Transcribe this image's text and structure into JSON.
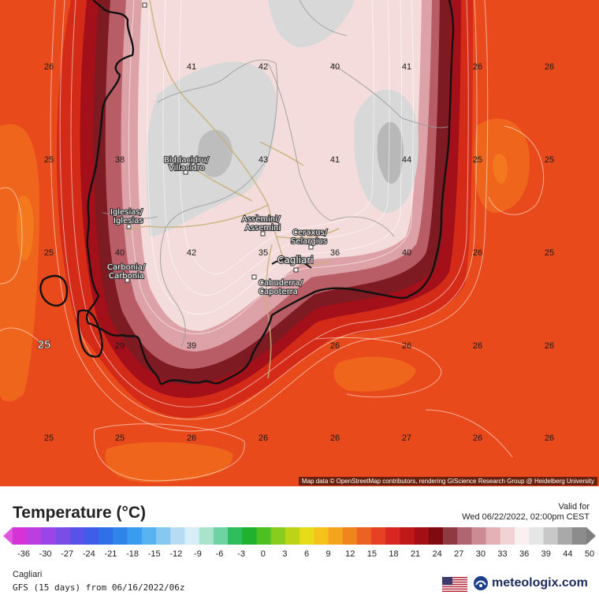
{
  "map": {
    "attribution": "Map data © OpenStreetMap contributors, rendering GIScience Research Group @ Heidelberg University",
    "temperature_labels": [
      {
        "v": "26"
      },
      {
        "v": "41"
      },
      {
        "v": "42"
      },
      {
        "v": "40"
      },
      {
        "v": "41"
      },
      {
        "v": "26"
      },
      {
        "v": "26"
      },
      {
        "v": "25"
      },
      {
        "v": "38"
      },
      {
        "v": "43"
      },
      {
        "v": "41"
      },
      {
        "v": "44"
      },
      {
        "v": "25"
      },
      {
        "v": "25"
      },
      {
        "v": "25"
      },
      {
        "v": "40"
      },
      {
        "v": "42"
      },
      {
        "v": "35"
      },
      {
        "v": "36"
      },
      {
        "v": "40"
      },
      {
        "v": "26"
      },
      {
        "v": "25"
      },
      {
        "v": "25"
      },
      {
        "v": "29"
      },
      {
        "v": "39"
      },
      {
        "v": "26"
      },
      {
        "v": "26"
      },
      {
        "v": "26"
      },
      {
        "v": "26"
      },
      {
        "v": "25"
      },
      {
        "v": "25"
      },
      {
        "v": "26"
      },
      {
        "v": "26"
      },
      {
        "v": "26"
      },
      {
        "v": "27"
      },
      {
        "v": "26"
      },
      {
        "v": "26"
      }
    ],
    "cities": [
      {
        "name": "Villacidro"
      },
      {
        "name": "Iglesias"
      },
      {
        "name": "Carbonia"
      },
      {
        "name": "Assemini"
      },
      {
        "name": "Selargius"
      },
      {
        "name": "Cagliari"
      },
      {
        "name": "Capoterra"
      }
    ],
    "city_labels": {
      "villacidro": [
        "Biddacidru/",
        "Villacidro"
      ],
      "iglesias": [
        "Iglesias/",
        "Iglesias"
      ],
      "carbonia": [
        "Carbonia/",
        "Carbonia"
      ],
      "assemini": [
        "Assèmini/",
        "Assemini"
      ],
      "selargius": [
        "Ceraxus/",
        "Selargius"
      ],
      "cagliari": [
        "Cagliari"
      ],
      "capoterra": [
        "Cabuderra/",
        "Capoterra"
      ]
    }
  },
  "legend": {
    "title": "Temperature (°C)",
    "valid_label": "Valid for",
    "valid_date": "Wed 06/22/2022, 02:00pm CEST",
    "scale_ticks": [
      "-36",
      "-30",
      "-27",
      "-24",
      "-21",
      "-18",
      "-15",
      "-12",
      "-9",
      "-6",
      "-3",
      "0",
      "3",
      "6",
      "9",
      "12",
      "15",
      "18",
      "21",
      "24",
      "27",
      "30",
      "33",
      "36",
      "39",
      "44",
      "50"
    ],
    "colors": [
      "#d633d6",
      "#bb3ee0",
      "#9a45e8",
      "#7a4de8",
      "#5a52e8",
      "#3f5de8",
      "#2f6fe8",
      "#2f85ea",
      "#3a9cee",
      "#58b2f0",
      "#86c8f2",
      "#b6dcf4",
      "#d8eef6",
      "#a9e3cc",
      "#6ed3a4",
      "#2fbe5d",
      "#20b12e",
      "#4cbf21",
      "#88cc1d",
      "#bcd418",
      "#e6dc18",
      "#f4c21a",
      "#f3a41c",
      "#f08520",
      "#eb6222",
      "#e54122",
      "#d82720",
      "#c01818",
      "#a30f14",
      "#7f0a10",
      "#8e3a40",
      "#b06570",
      "#cc8b94",
      "#e4b1b6",
      "#f2d3d5",
      "#faf0f0",
      "#e6e6e6",
      "#c8c8c8",
      "#a9a9a9",
      "#8c8c8c"
    ]
  },
  "footer": {
    "location": "Cagliari",
    "model": "GFS (15 days) from 06/16/2022/06z",
    "brand": "meteologix.com"
  }
}
